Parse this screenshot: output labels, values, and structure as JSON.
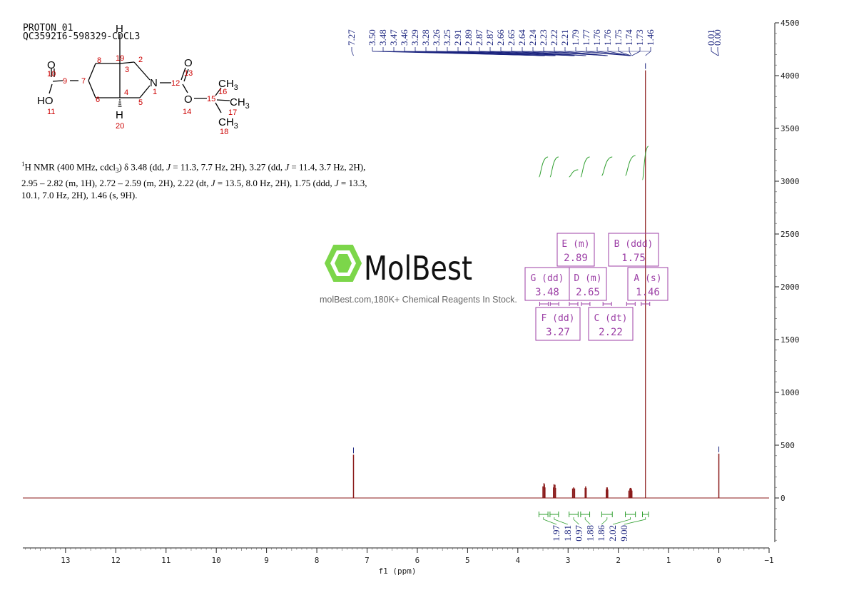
{
  "header": {
    "line1": "PROTON_01",
    "line2": "QC359216-598329-CDCL3"
  },
  "description": {
    "sup": "1",
    "pre": "H NMR (400 MHz, cdcl",
    "sub": "3",
    "after_sub": ") δ 3.48 (dd, ",
    "j1": "J",
    "t1": " = 11.3, 7.7 Hz, 2H), 3.27 (dd, ",
    "j2": "J",
    "t2": " = 11.4, 3.7 Hz, 2H),",
    "t3": "2.95 – 2.82 (m, 1H), 2.72 – 2.59 (m, 2H), 2.22 (dt, ",
    "j3": "J",
    "t4": " = 13.5, 8.0 Hz, 2H), 1.75 (ddd, ",
    "j4": "J",
    "t5": " = 13.3,",
    "t6": "10.1, 7.0 Hz, 2H), 1.46 (s, 9H)."
  },
  "watermark": {
    "brand": "MolBest",
    "tagline": "molBest.com,180K+ Chemical Reagents In Stock."
  },
  "molecule": {
    "atoms": {
      "O10": "O",
      "HO": "HO",
      "H19": "H",
      "H20": "H",
      "N": "N",
      "O13": "O",
      "O14": "O",
      "CH3a": "CH",
      "CH3b": "CH",
      "CH3c": "CH",
      "sub3": "3"
    },
    "numbers": {
      "n1": "1",
      "n2": "2",
      "n3": "3",
      "n4": "4",
      "n5": "5",
      "n6": "6",
      "n7": "7",
      "n8": "8",
      "n9": "9",
      "n10": "10",
      "n11": "11",
      "n12": "12",
      "n13": "13",
      "n14": "14",
      "n15": "15",
      "n16": "16",
      "n17": "17",
      "n18": "18",
      "n19": "19",
      "n20": "20"
    },
    "number_color": "#cc0000"
  },
  "chart_data": {
    "type": "line",
    "xlabel": "f1 (ppm)",
    "xlim": [
      13.85,
      -1.0
    ],
    "ylim": [
      -500,
      4500
    ],
    "x_ticks": [
      13,
      12,
      11,
      10,
      9,
      8,
      7,
      6,
      5,
      4,
      3,
      2,
      1,
      0,
      -1
    ],
    "x_tick_labels": [
      "13",
      "12",
      "11",
      "10",
      "9",
      "8",
      "7",
      "6",
      "5",
      "4",
      "3",
      "2",
      "1",
      "0",
      "−1"
    ],
    "y_ticks": [
      0,
      500,
      1000,
      1500,
      2000,
      2500,
      3000,
      3500,
      4000,
      4500
    ],
    "y_tick_labels": [
      "0",
      "500",
      "1000",
      "1500",
      "2000",
      "2500",
      "3000",
      "3500",
      "4000",
      "4500"
    ],
    "spectrum_color": "#8b1a1a",
    "integral_color": "#2e9e2e",
    "label_color": "#1a237e",
    "box_color": "#9c3fa6",
    "peaks": [
      {
        "x": 7.27,
        "h": 410
      },
      {
        "x": 3.5,
        "h": 110
      },
      {
        "x": 3.48,
        "h": 140
      },
      {
        "x": 3.47,
        "h": 130
      },
      {
        "x": 3.46,
        "h": 100
      },
      {
        "x": 3.29,
        "h": 100
      },
      {
        "x": 3.28,
        "h": 130
      },
      {
        "x": 3.26,
        "h": 125
      },
      {
        "x": 3.25,
        "h": 95
      },
      {
        "x": 2.91,
        "h": 90
      },
      {
        "x": 2.89,
        "h": 100
      },
      {
        "x": 2.87,
        "h": 90
      },
      {
        "x": 2.66,
        "h": 95
      },
      {
        "x": 2.65,
        "h": 110
      },
      {
        "x": 2.64,
        "h": 95
      },
      {
        "x": 2.24,
        "h": 80
      },
      {
        "x": 2.23,
        "h": 100
      },
      {
        "x": 2.22,
        "h": 100
      },
      {
        "x": 2.21,
        "h": 80
      },
      {
        "x": 1.79,
        "h": 70
      },
      {
        "x": 1.77,
        "h": 90
      },
      {
        "x": 1.76,
        "h": 95
      },
      {
        "x": 1.75,
        "h": 95
      },
      {
        "x": 1.74,
        "h": 85
      },
      {
        "x": 1.73,
        "h": 70
      },
      {
        "x": 1.46,
        "h": 4050
      },
      {
        "x": 0.0,
        "h": 420
      }
    ],
    "peak_labels": [
      "7.27",
      "3.50",
      "3.48",
      "3.47",
      "3.46",
      "3.29",
      "3.28",
      "3.26",
      "3.25",
      "2.91",
      "2.89",
      "2.87",
      "2.87",
      "2.66",
      "2.65",
      "2.64",
      "2.24",
      "2.23",
      "2.22",
      "2.21",
      "1.79",
      "1.77",
      "1.76",
      "1.76",
      "1.75",
      "1.74",
      "1.73",
      "1.46",
      "0.01",
      "0.00"
    ],
    "integrals": [
      {
        "from": 3.58,
        "to": 3.4,
        "value": "1.97"
      },
      {
        "from": 3.36,
        "to": 3.19,
        "value": "1.81"
      },
      {
        "from": 2.98,
        "to": 2.8,
        "value": "0.97"
      },
      {
        "from": 2.75,
        "to": 2.57,
        "value": "1.88"
      },
      {
        "from": 2.33,
        "to": 2.12,
        "value": "1.86"
      },
      {
        "from": 1.86,
        "to": 1.66,
        "value": "2.02"
      },
      {
        "from": 1.52,
        "to": 1.4,
        "value": "9.00"
      }
    ],
    "multiplets": [
      {
        "id": "E",
        "type": "m",
        "shift": "2.89",
        "label": "E (m)",
        "value": "2.89"
      },
      {
        "id": "B",
        "type": "ddd",
        "shift": "1.75",
        "label": "B (ddd)",
        "value": "1.75"
      },
      {
        "id": "G",
        "type": "dd",
        "shift": "3.48",
        "label": "G (dd)",
        "value": "3.48"
      },
      {
        "id": "D",
        "type": "m",
        "shift": "2.65",
        "label": "D (m)",
        "value": "2.65"
      },
      {
        "id": "A",
        "type": "s",
        "shift": "1.46",
        "label": "A (s)",
        "value": "1.46"
      },
      {
        "id": "F",
        "type": "dd",
        "shift": "3.27",
        "label": "F (dd)",
        "value": "3.27"
      },
      {
        "id": "C",
        "type": "dt",
        "shift": "2.22",
        "label": "C (dt)",
        "value": "2.22"
      }
    ]
  }
}
